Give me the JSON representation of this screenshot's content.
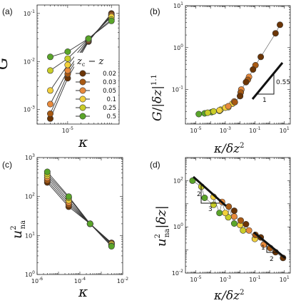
{
  "colors": {
    "axis": "#222222",
    "line": "#333333",
    "marker_edge": "#333333",
    "series": [
      "#6b3506",
      "#a85a14",
      "#e88a3c",
      "#f2d03c",
      "#c9cd28",
      "#5aa52a"
    ]
  },
  "chart_data": [
    {
      "id": "a",
      "type": "line",
      "panel_label": "(a)",
      "xlabel": "κ",
      "ylabel": "G",
      "xscale": "log",
      "yscale": "log",
      "xlim": [
        2e-06,
        0.00015
      ],
      "ylim": [
        0.0005,
        0.15
      ],
      "x_ticks": [
        "10^-5"
      ],
      "y_ticks": [
        "10^-3",
        "10^-2",
        "10^-1"
      ],
      "legend": {
        "title": "z_c − z",
        "placement": "bottom-right",
        "entries": [
          "0.02",
          "0.03",
          "0.05",
          "0.1",
          "0.25",
          "0.5"
        ]
      },
      "series": [
        {
          "name": "0.02",
          "x": [
            4e-06,
            1e-05,
            3e-05,
            0.0001
          ],
          "y": [
            0.00065,
            0.0045,
            0.026,
            0.1
          ]
        },
        {
          "name": "0.03",
          "x": [
            4e-06,
            1e-05,
            3e-05,
            0.0001
          ],
          "y": [
            0.00082,
            0.0055,
            0.027,
            0.095
          ]
        },
        {
          "name": "0.05",
          "x": [
            4e-06,
            1e-05,
            3e-05,
            0.0001
          ],
          "y": [
            0.0013,
            0.0065,
            0.028,
            0.09
          ]
        },
        {
          "name": "0.1",
          "x": [
            4e-06,
            1e-05,
            3e-05,
            0.0001
          ],
          "y": [
            0.0025,
            0.0085,
            0.029,
            0.085
          ]
        },
        {
          "name": "0.25",
          "x": [
            4e-06,
            1e-05,
            3e-05,
            0.0001
          ],
          "y": [
            0.0065,
            0.0115,
            0.03,
            0.075
          ]
        },
        {
          "name": "0.5",
          "x": [
            4e-06,
            1e-05,
            3e-05,
            0.0001
          ],
          "y": [
            0.0125,
            0.016,
            0.03,
            0.07
          ]
        }
      ]
    },
    {
      "id": "b",
      "type": "scatter",
      "panel_label": "(b)",
      "xlabel": "κ/δz²",
      "ylabel": "G/|δz|^1.1",
      "xscale": "log",
      "yscale": "log",
      "xlim": [
        2e-06,
        25
      ],
      "ylim": [
        0.015,
        10
      ],
      "x_ticks": [
        "10^-5",
        "10^-3",
        "10^-1",
        "10^1"
      ],
      "y_ticks": [
        "10^-1",
        "10^0",
        "10^1"
      ],
      "slope_annotation": {
        "slope": "0.55",
        "run": "1"
      },
      "series": [
        {
          "name": "0.5",
          "x": [
            1.6e-05,
            4e-05,
            0.00012,
            0.0004
          ],
          "y": [
            0.026,
            0.027,
            0.029,
            0.031
          ]
        },
        {
          "name": "0.25",
          "x": [
            6.4e-05,
            0.00016,
            0.00048,
            0.0016
          ],
          "y": [
            0.028,
            0.03,
            0.033,
            0.038
          ]
        },
        {
          "name": "0.1",
          "x": [
            0.0004,
            0.001,
            0.003,
            0.01
          ],
          "y": [
            0.032,
            0.037,
            0.046,
            0.07
          ]
        },
        {
          "name": "0.05",
          "x": [
            0.0016,
            0.004,
            0.012,
            0.04
          ],
          "y": [
            0.04,
            0.052,
            0.1,
            0.2
          ]
        },
        {
          "name": "0.03",
          "x": [
            0.0044,
            0.011,
            0.033,
            0.11
          ],
          "y": [
            0.05,
            0.085,
            0.17,
            0.38
          ]
        },
        {
          "name": "0.02",
          "x": [
            0.01,
            0.025,
            0.075,
            0.25,
            2.5,
            5
          ],
          "y": [
            0.07,
            0.15,
            0.3,
            0.6,
            2.2,
            3.5
          ]
        }
      ]
    },
    {
      "id": "c",
      "type": "line",
      "panel_label": "(c)",
      "xlabel": "κ",
      "ylabel": "u²_na",
      "xscale": "log",
      "yscale": "log",
      "xlim": [
        1e-06,
        0.01
      ],
      "ylim": [
        1,
        1000
      ],
      "x_ticks": [
        "10^-6",
        "10^-4",
        "10^-2"
      ],
      "y_ticks": [
        "10^0",
        "10^1",
        "10^2",
        "10^3"
      ],
      "series": [
        {
          "name": "0.02",
          "x": [
            3e-06,
            3e-05,
            0.0003,
            0.003
          ],
          "y": [
            230,
            55,
            20,
            6.5
          ]
        },
        {
          "name": "0.03",
          "x": [
            3e-06,
            3e-05,
            0.0003,
            0.003
          ],
          "y": [
            260,
            62,
            20,
            6.3
          ]
        },
        {
          "name": "0.05",
          "x": [
            3e-06,
            3e-05,
            0.0003,
            0.003
          ],
          "y": [
            300,
            70,
            20,
            6
          ]
        },
        {
          "name": "0.1",
          "x": [
            3e-06,
            3e-05,
            0.0003,
            0.003
          ],
          "y": [
            340,
            80,
            20,
            6
          ]
        },
        {
          "name": "0.25",
          "x": [
            3e-06,
            3e-05,
            0.0003,
            0.003
          ],
          "y": [
            380,
            92,
            20,
            5.5
          ]
        },
        {
          "name": "0.5",
          "x": [
            3e-06,
            3e-05,
            0.0003,
            0.003
          ],
          "y": [
            430,
            100,
            20,
            5.3
          ]
        }
      ]
    },
    {
      "id": "d",
      "type": "scatter",
      "panel_label": "(d)",
      "xlabel": "κ/δz²",
      "ylabel": "u²_na|δz|",
      "xscale": "log",
      "yscale": "log",
      "xlim": [
        2e-06,
        25
      ],
      "ylim": [
        0.01,
        1000
      ],
      "x_ticks": [
        "10^-5",
        "10^-3",
        "10^-1",
        "10^1"
      ],
      "y_ticks": [
        "10^-2",
        "10^0",
        "10^2"
      ],
      "slope_annotations": [
        {
          "rise": "2",
          "run": "3"
        },
        {
          "rise": "1",
          "run": "2"
        }
      ],
      "series": [
        {
          "name": "0.5",
          "x": [
            6e-06,
            4e-05,
            0.0004,
            0.004
          ],
          "y": [
            100,
            18,
            4,
            1.4
          ]
        },
        {
          "name": "0.25",
          "x": [
            2.4e-05,
            0.00016,
            0.0016,
            0.016
          ],
          "y": [
            55,
            9,
            2.6,
            0.7
          ]
        },
        {
          "name": "0.1",
          "x": [
            0.00016,
            0.001,
            0.01,
            0.1
          ],
          "y": [
            20,
            4,
            1.2,
            0.3
          ]
        },
        {
          "name": "0.05",
          "x": [
            0.0006,
            0.004,
            0.04,
            0.4
          ],
          "y": [
            12,
            2.8,
            0.7,
            0.17
          ]
        },
        {
          "name": "0.03",
          "x": [
            0.0017,
            0.011,
            0.11,
            1.1
          ],
          "y": [
            7.5,
            1.9,
            0.45,
            0.12
          ]
        },
        {
          "name": "0.02",
          "x": [
            0.004,
            0.025,
            0.25,
            2.5,
            8
          ],
          "y": [
            5,
            1.3,
            0.35,
            0.08,
            0.045
          ]
        }
      ]
    }
  ]
}
